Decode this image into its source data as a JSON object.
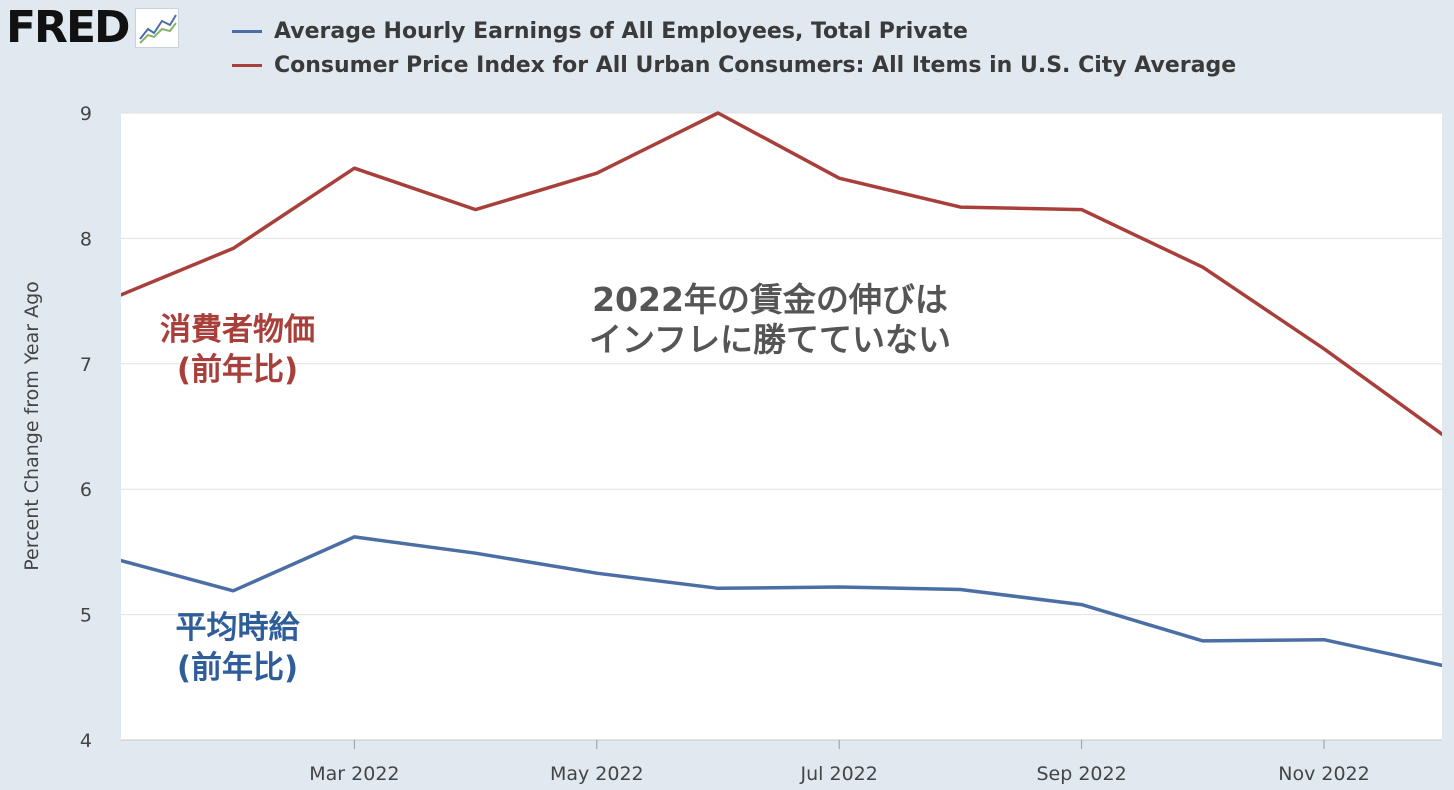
{
  "header": {
    "logo_text": "FRED",
    "logo_icon": "line-chart-icon"
  },
  "colors": {
    "background": "#e1e9f0",
    "plot_background": "#ffffff",
    "earnings": "#4b6ea5",
    "cpi": "#a83f3a",
    "grid": "#e0e0e0"
  },
  "annotations": {
    "center_line1": "2022年の賃金の伸びは",
    "center_line2": "インフレに勝てていない",
    "cpi_label_line1": "消費者物価",
    "cpi_label_line2": "(前年比)",
    "wage_label_line1": "平均時給",
    "wage_label_line2": "(前年比)"
  },
  "chart_data": {
    "type": "line",
    "title": "",
    "xlabel": "",
    "ylabel": "Percent Change from Year Ago",
    "ylim": [
      4,
      9
    ],
    "yticks": [
      "4",
      "5",
      "6",
      "7",
      "8",
      "9"
    ],
    "x": [
      "2022-01",
      "2022-02",
      "2022-03",
      "2022-04",
      "2022-05",
      "2022-06",
      "2022-07",
      "2022-08",
      "2022-09",
      "2022-10",
      "2022-11",
      "2022-12"
    ],
    "xtick_labels": [
      "Mar 2022",
      "May 2022",
      "Jul 2022",
      "Sep 2022",
      "Nov 2022"
    ],
    "xtick_positions": [
      "2022-03",
      "2022-05",
      "2022-07",
      "2022-09",
      "2022-11"
    ],
    "grid": true,
    "legend_position": "top",
    "series": [
      {
        "name": "Average Hourly Earnings of All Employees, Total Private",
        "color": "#4b6ea5",
        "values": [
          5.45,
          5.19,
          5.62,
          5.49,
          5.33,
          5.21,
          5.22,
          5.2,
          5.08,
          4.79,
          4.8,
          4.59
        ]
      },
      {
        "name": "Consumer Price Index for All Urban Consumers: All Items in U.S. City Average",
        "color": "#a83f3a",
        "values": [
          7.52,
          7.92,
          8.56,
          8.23,
          8.52,
          9.0,
          8.48,
          8.25,
          8.23,
          7.77,
          7.12,
          6.42
        ]
      }
    ]
  }
}
